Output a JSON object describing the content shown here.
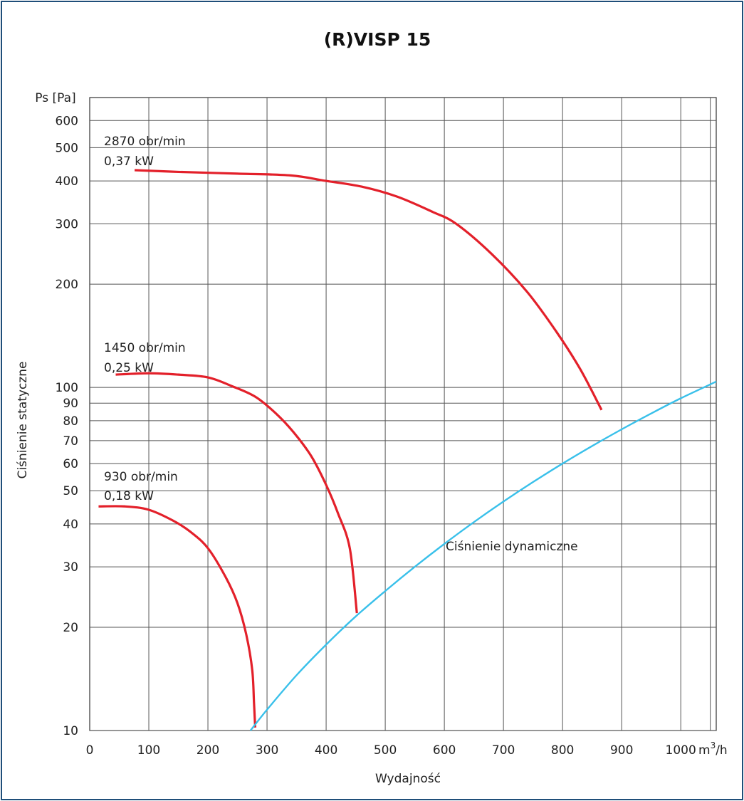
{
  "chart_data": {
    "type": "line",
    "title": "(R)VISP 15",
    "ylabel": "Ciśnienie statyczne",
    "ylabel_unit": "Ps [Pa]",
    "xlabel": "Wydajność",
    "x_unit_prefix": "m",
    "x_unit_sup": "3",
    "x_unit_suffix": "/h",
    "xlim": [
      0,
      1060
    ],
    "ylim": [
      10,
      700
    ],
    "y_scale": "log",
    "grid": true,
    "x_ticks": [
      0,
      100,
      200,
      300,
      400,
      500,
      600,
      700,
      800,
      900,
      1000
    ],
    "x_tick_labels": [
      "0",
      "100",
      "200",
      "300",
      "400",
      "500",
      "600",
      "700",
      "800",
      "900",
      "1000"
    ],
    "y_ticks": [
      10,
      20,
      30,
      40,
      50,
      60,
      70,
      80,
      90,
      100,
      200,
      300,
      400,
      500,
      600
    ],
    "y_tick_labels": [
      "10",
      "20",
      "30",
      "40",
      "50",
      "60",
      "70",
      "80",
      "90",
      "100",
      "200",
      "300",
      "400",
      "500",
      "600"
    ],
    "series": [
      {
        "speed": "2870 obr/min",
        "power": "0,37 kW",
        "color": "#e3202a",
        "x": [
          76,
          150,
          250,
          340,
          400,
          460,
          520,
          580,
          620,
          680,
          740,
          790,
          830,
          866
        ],
        "y": [
          430,
          425,
          420,
          415,
          400,
          385,
          360,
          325,
          300,
          245,
          190,
          145,
          113,
          86
        ]
      },
      {
        "speed": "1450 obr/min",
        "power": "0,25 kW",
        "color": "#e3202a",
        "x": [
          44,
          100,
          150,
          200,
          240,
          280,
          315,
          345,
          375,
          400,
          420,
          440,
          452
        ],
        "y": [
          109,
          110,
          109,
          107,
          101,
          94,
          84,
          74,
          63,
          52,
          43,
          34,
          22
        ]
      },
      {
        "speed": "930 obr/min",
        "power": "0,18 kW",
        "color": "#e3202a",
        "x": [
          15,
          60,
          100,
          140,
          170,
          200,
          230,
          250,
          265,
          275,
          278,
          280
        ],
        "y": [
          45,
          45,
          44,
          41,
          38,
          34,
          28,
          23.5,
          19,
          15,
          12,
          10.2
        ]
      },
      {
        "name": "Ciśnienie dynamiczne",
        "color": "#39c0ea",
        "x": [
          272,
          300,
          350,
          400,
          450,
          500,
          550,
          600,
          650,
          700,
          750,
          800,
          850,
          900,
          950,
          1000,
          1060
        ],
        "y": [
          10,
          11.5,
          14.5,
          17.8,
          21.5,
          25.5,
          30,
          35,
          40.5,
          46.5,
          53,
          60,
          67.5,
          75.5,
          84,
          93,
          104
        ]
      }
    ]
  }
}
